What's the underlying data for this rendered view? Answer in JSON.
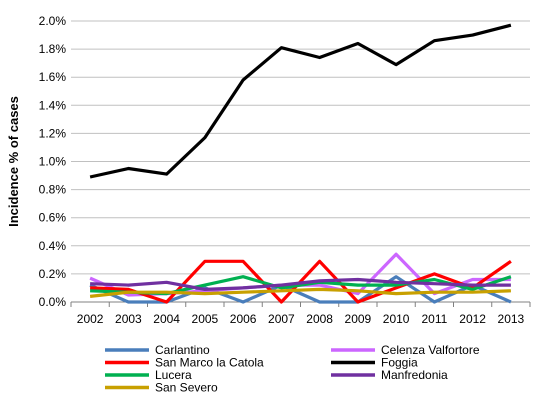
{
  "chart_data": {
    "type": "line",
    "title": "",
    "xlabel": "",
    "ylabel": "Incidence % of cases",
    "categories": [
      "2002",
      "2003",
      "2004",
      "2005",
      "2006",
      "2007",
      "2008",
      "2009",
      "2010",
      "2011",
      "2012",
      "2013"
    ],
    "ylim": [
      0,
      2.0
    ],
    "yticks": [
      "0.0%",
      "0.2%",
      "0.4%",
      "0.6%",
      "0.8%",
      "1.0%",
      "1.2%",
      "1.4%",
      "1.6%",
      "1.8%",
      "2.0%"
    ],
    "grid": "horizontal",
    "legend_position": "bottom",
    "series": [
      {
        "name": "Carlantino",
        "color": "#4a7ebb",
        "values": [
          0.12,
          0.0,
          0.0,
          0.1,
          0.0,
          0.12,
          0.0,
          0.0,
          0.18,
          0.0,
          0.12,
          0.0
        ]
      },
      {
        "name": "Celenza Valfortore",
        "color": "#cc66ff",
        "values": [
          0.17,
          0.05,
          0.06,
          0.08,
          0.1,
          0.12,
          0.12,
          0.06,
          0.34,
          0.06,
          0.16,
          0.16
        ]
      },
      {
        "name": "San Marco la Catola",
        "color": "#ff0000",
        "values": [
          0.1,
          0.09,
          0.0,
          0.29,
          0.29,
          0.0,
          0.29,
          0.0,
          0.1,
          0.2,
          0.1,
          0.29
        ]
      },
      {
        "name": "Foggia",
        "color": "#000000",
        "values": [
          0.89,
          0.95,
          0.91,
          1.17,
          1.58,
          1.81,
          1.74,
          1.84,
          1.69,
          1.86,
          1.9,
          1.97
        ]
      },
      {
        "name": "Lucera",
        "color": "#00b050",
        "values": [
          0.08,
          0.07,
          0.06,
          0.12,
          0.18,
          0.1,
          0.14,
          0.12,
          0.12,
          0.16,
          0.09,
          0.18
        ]
      },
      {
        "name": "Manfredonia",
        "color": "#7030a0",
        "values": [
          0.13,
          0.12,
          0.14,
          0.09,
          0.1,
          0.12,
          0.15,
          0.16,
          0.14,
          0.13,
          0.12,
          0.12
        ]
      },
      {
        "name": "San Severo",
        "color": "#c8a000",
        "values": [
          0.04,
          0.07,
          0.07,
          0.06,
          0.07,
          0.08,
          0.09,
          0.08,
          0.06,
          0.07,
          0.07,
          0.08
        ]
      }
    ]
  }
}
